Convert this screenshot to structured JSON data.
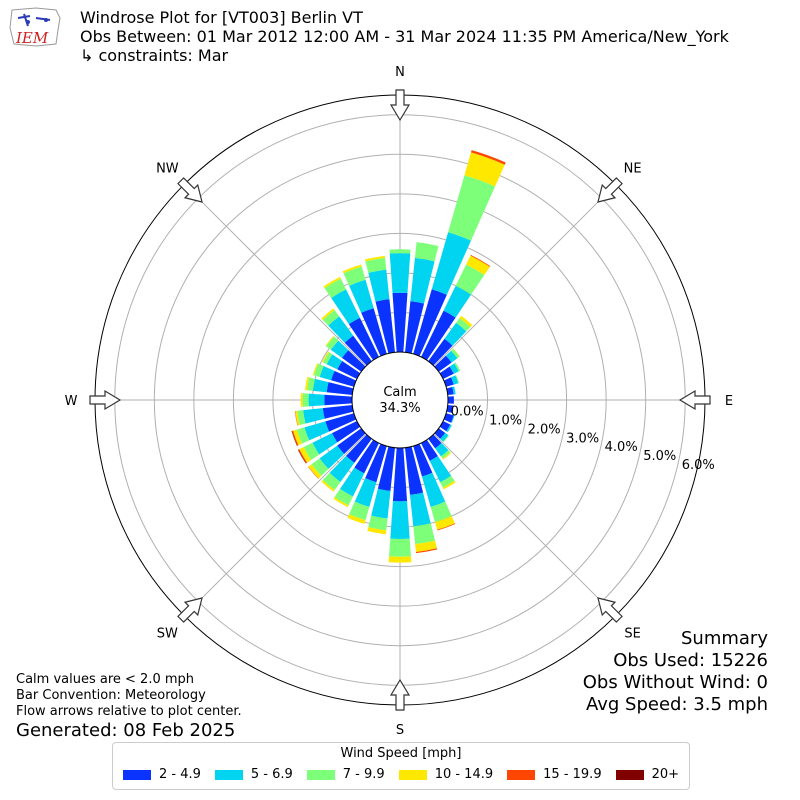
{
  "header": {
    "title_line1": "Windrose Plot for [VT003] Berlin  VT",
    "title_line2": "Obs Between: 01 Mar 2012 12:00 AM - 31 Mar 2024 11:35 PM America/New_York",
    "title_line3": "↳ constraints: Mar",
    "logo_text": "IEM"
  },
  "notes": {
    "line1": "Calm values are < 2.0 mph",
    "line2": "Bar Convention: Meteorology",
    "line3": "Flow arrows relative to plot center.",
    "generated": "Generated: 08 Feb 2025"
  },
  "summary": {
    "title": "Summary",
    "obs_used": "Obs Used: 15226",
    "obs_without_wind": "Obs Without Wind: 0",
    "avg_speed": "Avg Speed: 3.5 mph"
  },
  "legend": {
    "title": "Wind Speed [mph]",
    "items": [
      {
        "label": "2 - 4.9",
        "color": "#0a33ff"
      },
      {
        "label": "5 - 6.9",
        "color": "#00d4f0"
      },
      {
        "label": "7 - 9.9",
        "color": "#7eff7a"
      },
      {
        "label": "10 - 14.9",
        "color": "#ffe800"
      },
      {
        "label": "15 - 19.9",
        "color": "#ff4600"
      },
      {
        "label": "20+",
        "color": "#800000"
      }
    ]
  },
  "chart_data": {
    "type": "windrose",
    "title": "Windrose Plot for [VT003] Berlin  VT",
    "calm_label": "Calm",
    "calm_value": "34.3%",
    "calm_percent": 34.3,
    "rlim": [
      0,
      6.5
    ],
    "radial_ticks": [
      0,
      1,
      2,
      3,
      4,
      5,
      6
    ],
    "radial_tick_labels": [
      "0.0%",
      "1.0%",
      "2.0%",
      "3.0%",
      "4.0%",
      "5.0%",
      "6.0%"
    ],
    "compass_labels": [
      "N",
      "NE",
      "E",
      "SE",
      "S",
      "SW",
      "W",
      "NW"
    ],
    "grid": true,
    "sector_width_deg": 10,
    "bins": [
      "2 - 4.9",
      "5 - 6.9",
      "7 - 9.9",
      "10 - 14.9",
      "15 - 19.9",
      "20+"
    ],
    "directions_deg": [
      0,
      10,
      20,
      30,
      40,
      50,
      60,
      70,
      80,
      90,
      100,
      110,
      120,
      130,
      140,
      150,
      160,
      170,
      180,
      190,
      200,
      210,
      220,
      230,
      240,
      250,
      260,
      270,
      280,
      290,
      300,
      310,
      320,
      330,
      340,
      350
    ],
    "cumulative_percent": [
      [
        1.5,
        2.5,
        2.6,
        2.6,
        2.6,
        2.6
      ],
      [
        1.3,
        2.4,
        2.8,
        2.8,
        2.8,
        2.8
      ],
      [
        1.7,
        3.2,
        4.7,
        5.3,
        5.36,
        5.36
      ],
      [
        1.3,
        2.0,
        2.6,
        2.85,
        2.87,
        2.87
      ],
      [
        0.7,
        1.2,
        1.35,
        1.42,
        1.42,
        1.42
      ],
      [
        0.4,
        0.58,
        0.65,
        0.66,
        0.66,
        0.66
      ],
      [
        0.3,
        0.44,
        0.48,
        0.48,
        0.48,
        0.48
      ],
      [
        0.2,
        0.32,
        0.34,
        0.34,
        0.34,
        0.34
      ],
      [
        0.15,
        0.2,
        0.2,
        0.2,
        0.2,
        0.2
      ],
      [
        0.15,
        0.15,
        0.15,
        0.15,
        0.15,
        0.15
      ],
      [
        0.15,
        0.15,
        0.15,
        0.15,
        0.15,
        0.15
      ],
      [
        0.2,
        0.22,
        0.22,
        0.22,
        0.22,
        0.22
      ],
      [
        0.2,
        0.24,
        0.25,
        0.25,
        0.25,
        0.25
      ],
      [
        0.2,
        0.3,
        0.32,
        0.32,
        0.32,
        0.32
      ],
      [
        0.3,
        0.55,
        0.62,
        0.65,
        0.65,
        0.65
      ],
      [
        0.5,
        1.1,
        1.25,
        1.3,
        1.3,
        1.3
      ],
      [
        0.8,
        1.6,
        2.0,
        2.2,
        2.22,
        2.22
      ],
      [
        1.2,
        2.0,
        2.45,
        2.65,
        2.68,
        2.68
      ],
      [
        1.35,
        2.3,
        2.75,
        2.9,
        2.9,
        2.9
      ],
      [
        1.1,
        1.8,
        2.1,
        2.2,
        2.2,
        2.2
      ],
      [
        0.95,
        1.6,
        1.95,
        2.05,
        2.05,
        2.05
      ],
      [
        0.85,
        1.5,
        1.75,
        1.8,
        1.8,
        1.8
      ],
      [
        0.75,
        1.35,
        1.6,
        1.65,
        1.65,
        1.65
      ],
      [
        0.75,
        1.3,
        1.55,
        1.65,
        1.66,
        1.66
      ],
      [
        0.7,
        1.25,
        1.5,
        1.62,
        1.65,
        1.66
      ],
      [
        0.75,
        1.3,
        1.5,
        1.6,
        1.63,
        1.64
      ],
      [
        0.75,
        1.25,
        1.4,
        1.45,
        1.46,
        1.46
      ],
      [
        0.7,
        1.1,
        1.25,
        1.3,
        1.3,
        1.3
      ],
      [
        0.65,
        1.0,
        1.15,
        1.2,
        1.2,
        1.2
      ],
      [
        0.6,
        0.9,
        1.05,
        1.08,
        1.08,
        1.08
      ],
      [
        0.55,
        0.85,
        0.95,
        0.98,
        0.98,
        0.98
      ],
      [
        0.6,
        0.95,
        1.1,
        1.12,
        1.12,
        1.12
      ],
      [
        0.8,
        1.4,
        1.6,
        1.65,
        1.65,
        1.65
      ],
      [
        1.1,
        1.9,
        2.2,
        2.25,
        2.25,
        2.25
      ],
      [
        1.2,
        1.95,
        2.3,
        2.35,
        2.35,
        2.35
      ],
      [
        1.35,
        2.1,
        2.4,
        2.45,
        2.45,
        2.45
      ]
    ]
  }
}
